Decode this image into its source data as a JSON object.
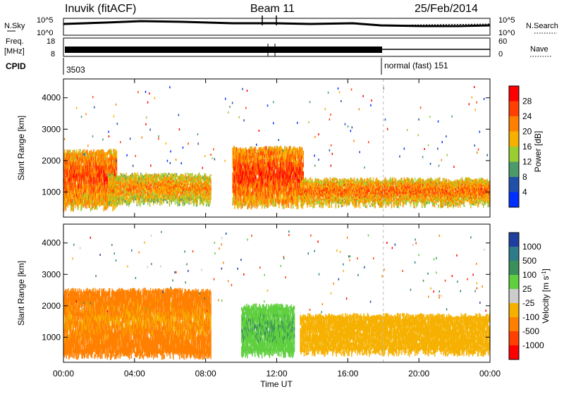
{
  "header": {
    "title": "Inuvik (fitACF)",
    "beam": "Beam 11",
    "date": "25/Feb/2014"
  },
  "top_panels": {
    "nsky_label": "N.Sky",
    "nsearch_label": "N.Search",
    "nsky_ticks": [
      "10^5",
      "10^0"
    ],
    "freq_label_1": "Freq.",
    "freq_label_2": "[MHz]",
    "freq_ticks": [
      "18",
      "8"
    ],
    "nave_label": "Nave",
    "nave_ticks": [
      "60",
      "0"
    ],
    "cpid_label": "CPID",
    "cpid_start": "3503",
    "cpid_mode": "normal (fast) 151",
    "cpid_switch_hour": 18
  },
  "axes": {
    "x_ticks": [
      "00:00",
      "04:00",
      "08:00",
      "12:00",
      "16:00",
      "20:00",
      "00:00"
    ],
    "x_tick_hours": [
      0,
      4,
      8,
      12,
      16,
      20,
      24
    ],
    "xlabel": "Time UT",
    "ylabel": "Slant Range [km]",
    "y_ticks": [
      "1000",
      "2000",
      "3000",
      "4000"
    ],
    "y_tick_values": [
      1000,
      2000,
      3000,
      4000
    ],
    "ylim": [
      200,
      4600
    ],
    "xlim": [
      0,
      24
    ]
  },
  "colorbars": {
    "power": {
      "label": "Power [dB]",
      "ticks": [
        "28",
        "24",
        "20",
        "16",
        "12",
        "8",
        "4"
      ],
      "colors": [
        "#ff0000",
        "#ff4000",
        "#ff8000",
        "#f6b000",
        "#9acd32",
        "#4c9a6a",
        "#2050a8",
        "#0030ff"
      ]
    },
    "velocity": {
      "label": "Velocity [m s",
      "label_sup": "-1",
      "label_end": "]",
      "ticks": [
        "1000",
        "500",
        "100",
        "25",
        "-25",
        "-100",
        "-500",
        "-1000"
      ],
      "colors": [
        "#1f3fa0",
        "#2e7b8a",
        "#3a8f5a",
        "#5fcf3f",
        "#cccccc",
        "#f6b000",
        "#ff8000",
        "#ff4000",
        "#ff0000"
      ]
    }
  },
  "chart_data": {
    "type": "heatmap",
    "description_series": [
      {
        "name": "Power",
        "bands": [
          {
            "t0": 0.0,
            "t1": 3.0,
            "r0": 500,
            "r1": 2300,
            "level": 26
          },
          {
            "t0": 2.5,
            "t1": 8.3,
            "r0": 650,
            "r1": 1550,
            "level": 22
          },
          {
            "t0": 9.5,
            "t1": 13.5,
            "r0": 550,
            "r1": 2400,
            "level": 27
          },
          {
            "t0": 13.3,
            "t1": 24.0,
            "r0": 600,
            "r1": 1400,
            "level": 24
          }
        ]
      },
      {
        "name": "Velocity",
        "bands": [
          {
            "t0": 0.0,
            "t1": 8.3,
            "r0": 400,
            "r1": 2500,
            "level": -100
          },
          {
            "t0": 10.0,
            "t1": 13.0,
            "r0": 450,
            "r1": 2000,
            "level": 100
          },
          {
            "t0": 13.3,
            "t1": 24.0,
            "r0": 500,
            "r1": 1700,
            "level": -50
          }
        ]
      }
    ]
  }
}
